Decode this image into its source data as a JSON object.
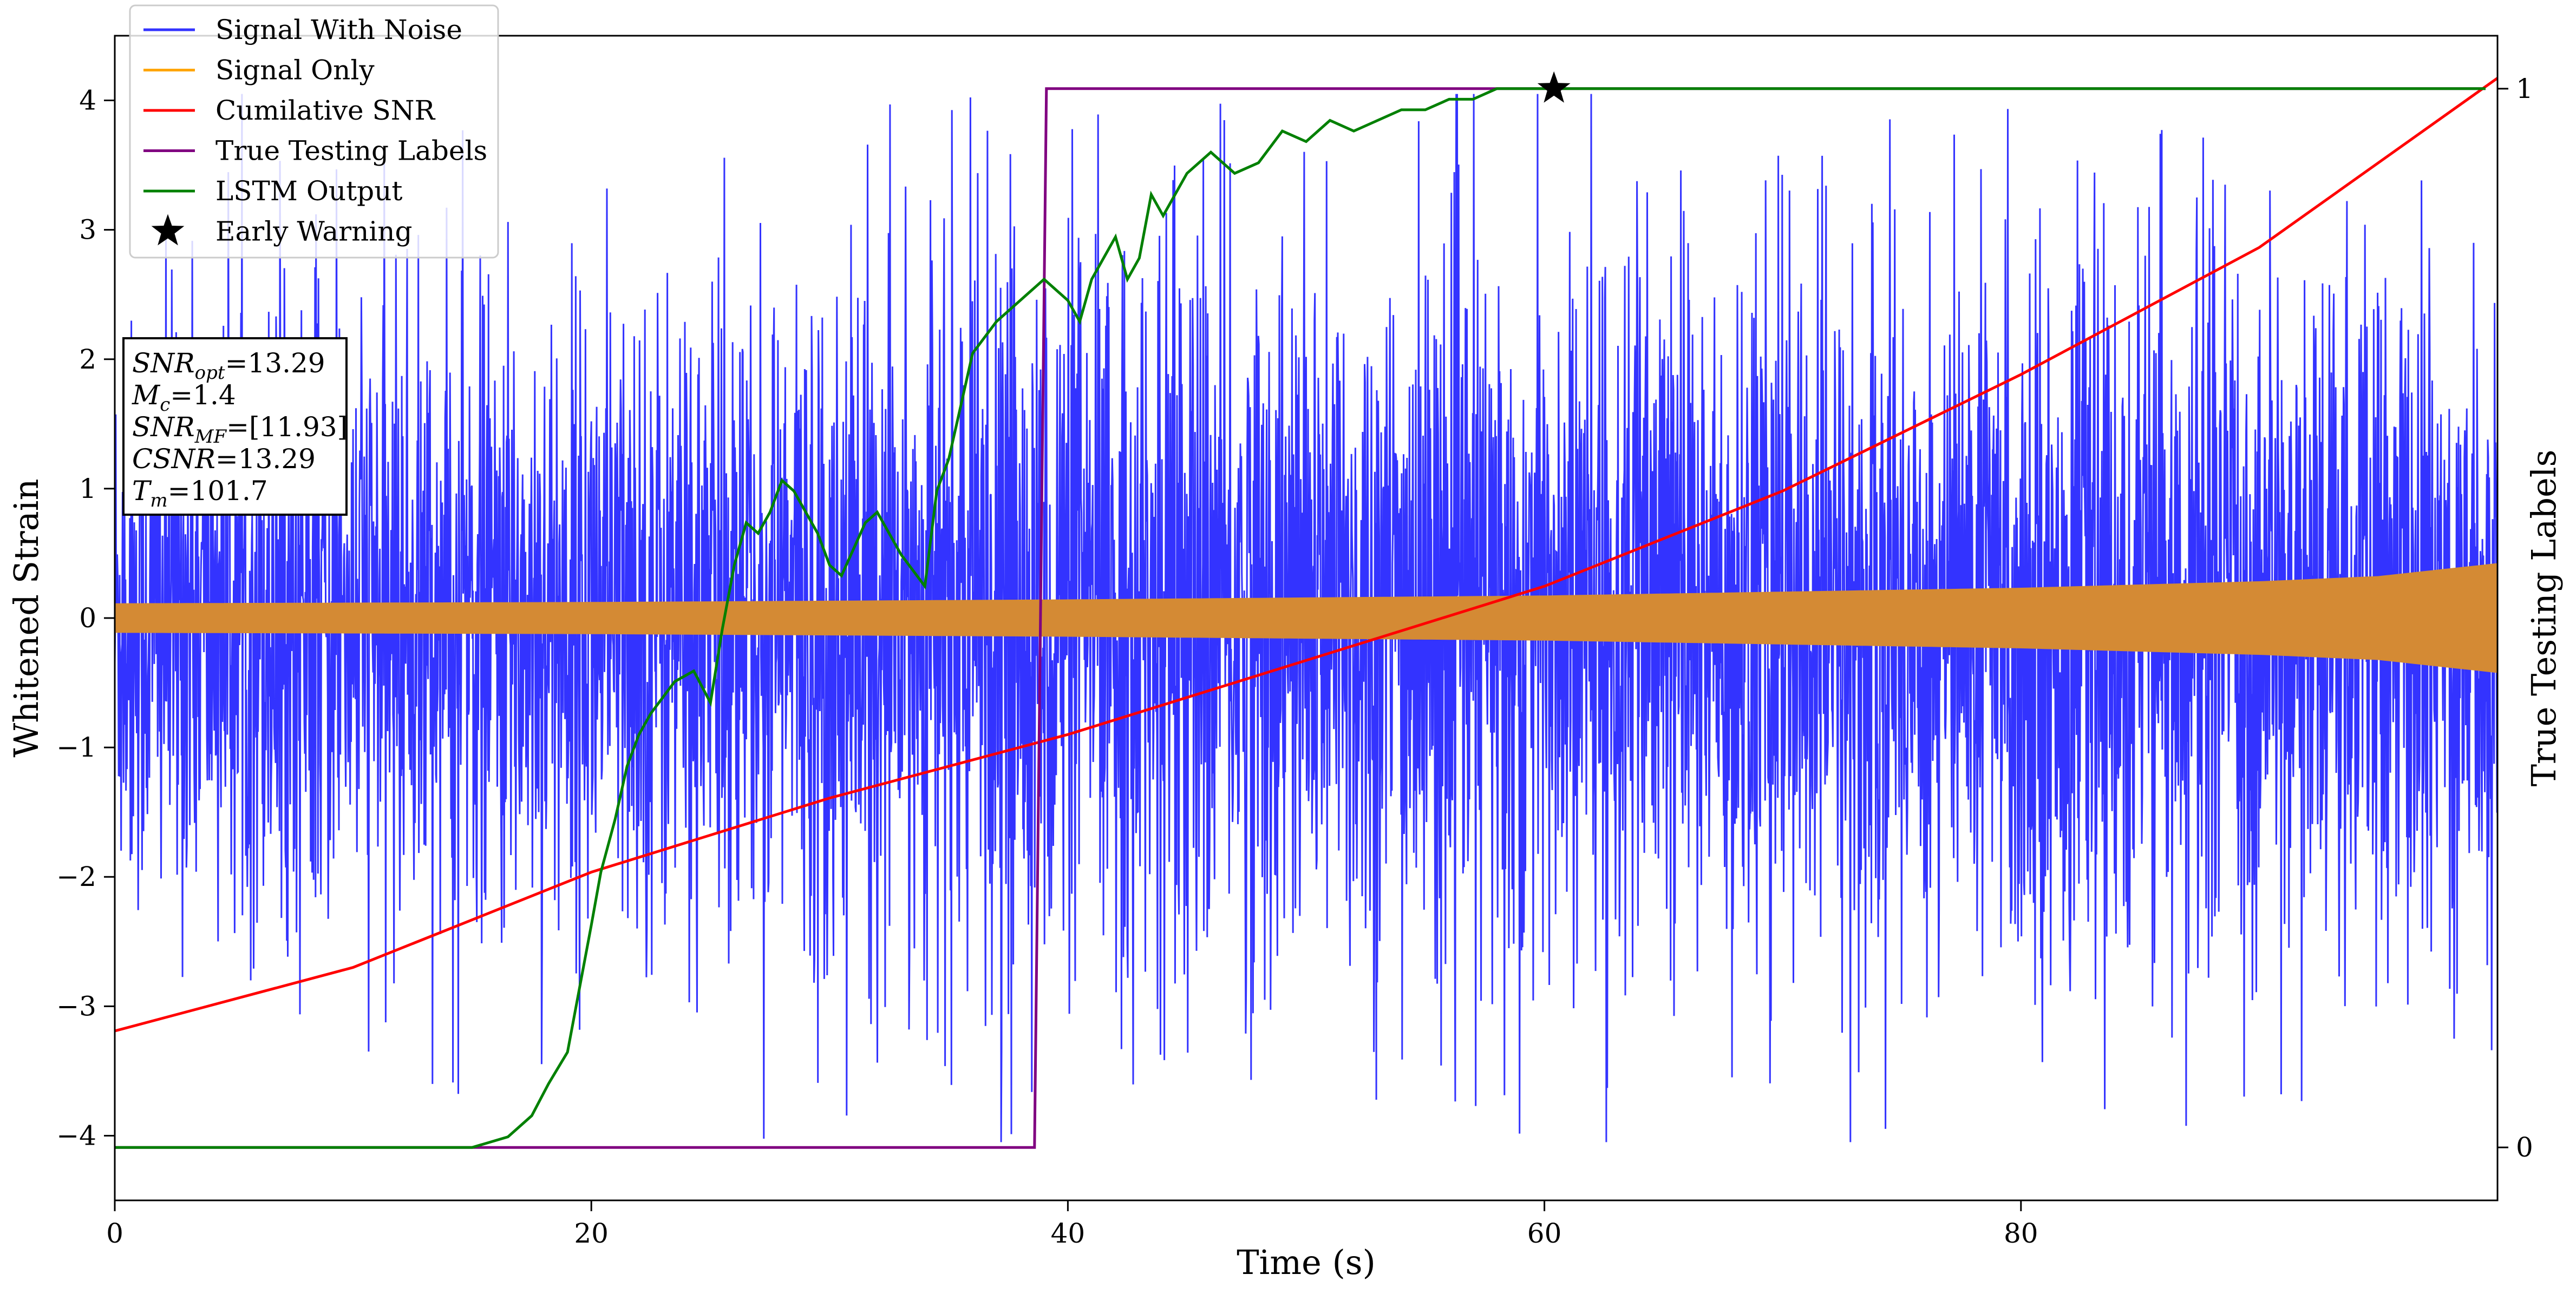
{
  "chart_data": {
    "type": "line",
    "xlabel": "Time (s)",
    "ylabel_left": "Whitened Strain",
    "ylabel_right": "True Testing Labels",
    "xlim": [
      0,
      100
    ],
    "ylim_left": [
      -4.5,
      4.5
    ],
    "ylim_right": [
      -0.05,
      1.05
    ],
    "x_ticks": [
      0,
      20,
      40,
      60,
      80
    ],
    "y_ticks_left": [
      -4,
      -3,
      -2,
      -1,
      0,
      1,
      2,
      3,
      4
    ],
    "y_ticks_right": [
      0,
      1
    ],
    "grid": false,
    "legend_position": "top-left",
    "legend": [
      {
        "label": "Signal With Noise",
        "color": "#3333ff",
        "marker": "line"
      },
      {
        "label": "Signal Only",
        "color": "#ffa500",
        "marker": "line"
      },
      {
        "label": "Cumilative SNR",
        "color": "#ff0000",
        "marker": "line"
      },
      {
        "label": "True Testing Labels",
        "color": "#800080",
        "marker": "line"
      },
      {
        "label": "LSTM Output",
        "color": "#008000",
        "marker": "line"
      },
      {
        "label": "Early Warning",
        "color": "#000000",
        "marker": "star"
      }
    ],
    "annotation": [
      {
        "sym": "SNR",
        "sub": "opt",
        "val": "=13.29"
      },
      {
        "sym": "M",
        "sub": "c",
        "val": "=1.4"
      },
      {
        "sym": "SNR",
        "sub": "MF",
        "val": "=[11.93]"
      },
      {
        "sym": "CSNR",
        "sub": "",
        "val": "=13.29"
      },
      {
        "sym": "T",
        "sub": "m",
        "val": "=101.7"
      }
    ],
    "series": [
      {
        "name": "Signal With Noise",
        "axis": "left",
        "description_envelope": {
          "x": [
            0,
            20,
            40,
            60,
            80,
            100
          ],
          "upper": [
            2.6,
            2.8,
            3.2,
            3.3,
            3.2,
            3.1
          ],
          "lower": [
            -2.6,
            -2.8,
            -3.2,
            -3.2,
            -3.1,
            -2.9
          ],
          "extreme_max": 4.05,
          "extreme_min": -4.05
        }
      },
      {
        "name": "Signal Only",
        "axis": "left",
        "envelope_x": [
          0,
          20,
          40,
          60,
          80,
          90,
          95,
          100
        ],
        "envelope_amplitude": [
          0.11,
          0.12,
          0.14,
          0.17,
          0.23,
          0.28,
          0.32,
          0.42
        ]
      },
      {
        "name": "Cumilative SNR",
        "axis": "right",
        "x": [
          0,
          10,
          20,
          30,
          40,
          50,
          60,
          70,
          80,
          90,
          100
        ],
        "y": [
          0.11,
          0.17,
          0.26,
          0.33,
          0.39,
          0.46,
          0.53,
          0.62,
          0.73,
          0.85,
          1.01
        ]
      },
      {
        "name": "True Testing Labels",
        "axis": "right",
        "x": [
          0,
          38.6,
          39.1,
          99.5
        ],
        "y": [
          0,
          0,
          1,
          1
        ]
      },
      {
        "name": "LSTM Output",
        "axis": "right",
        "x": [
          0,
          15,
          16.5,
          17.5,
          18.2,
          19,
          19.5,
          20,
          20.4,
          21,
          21.5,
          22,
          22.5,
          23.5,
          24.3,
          25,
          25.5,
          26,
          26.5,
          27,
          27.5,
          28,
          28.5,
          29.5,
          30,
          30.5,
          31.5,
          32,
          33,
          34,
          34.5,
          35,
          35.5,
          36,
          37,
          38,
          39,
          40,
          40.5,
          41,
          42,
          42.5,
          43,
          43.5,
          44,
          45,
          46,
          47,
          48,
          49,
          50,
          51,
          52,
          53,
          54,
          55,
          56,
          57,
          58,
          60,
          62,
          64,
          66,
          68,
          70,
          75,
          80,
          90,
          99.5
        ],
        "y": [
          0,
          0,
          0.01,
          0.03,
          0.06,
          0.09,
          0.15,
          0.21,
          0.26,
          0.31,
          0.36,
          0.39,
          0.41,
          0.44,
          0.45,
          0.42,
          0.49,
          0.55,
          0.59,
          0.58,
          0.6,
          0.63,
          0.62,
          0.58,
          0.55,
          0.54,
          0.59,
          0.6,
          0.56,
          0.53,
          0.62,
          0.65,
          0.7,
          0.75,
          0.78,
          0.8,
          0.82,
          0.8,
          0.78,
          0.82,
          0.86,
          0.82,
          0.84,
          0.9,
          0.88,
          0.92,
          0.94,
          0.92,
          0.93,
          0.96,
          0.95,
          0.97,
          0.96,
          0.97,
          0.98,
          0.98,
          0.99,
          0.99,
          1.0,
          1.0,
          1.0,
          1.0,
          1.0,
          1.0,
          1.0,
          1.0,
          1.0,
          1.0,
          1.0
        ]
      }
    ],
    "early_warning": {
      "x": 60.4,
      "y_right": 1.0
    }
  }
}
